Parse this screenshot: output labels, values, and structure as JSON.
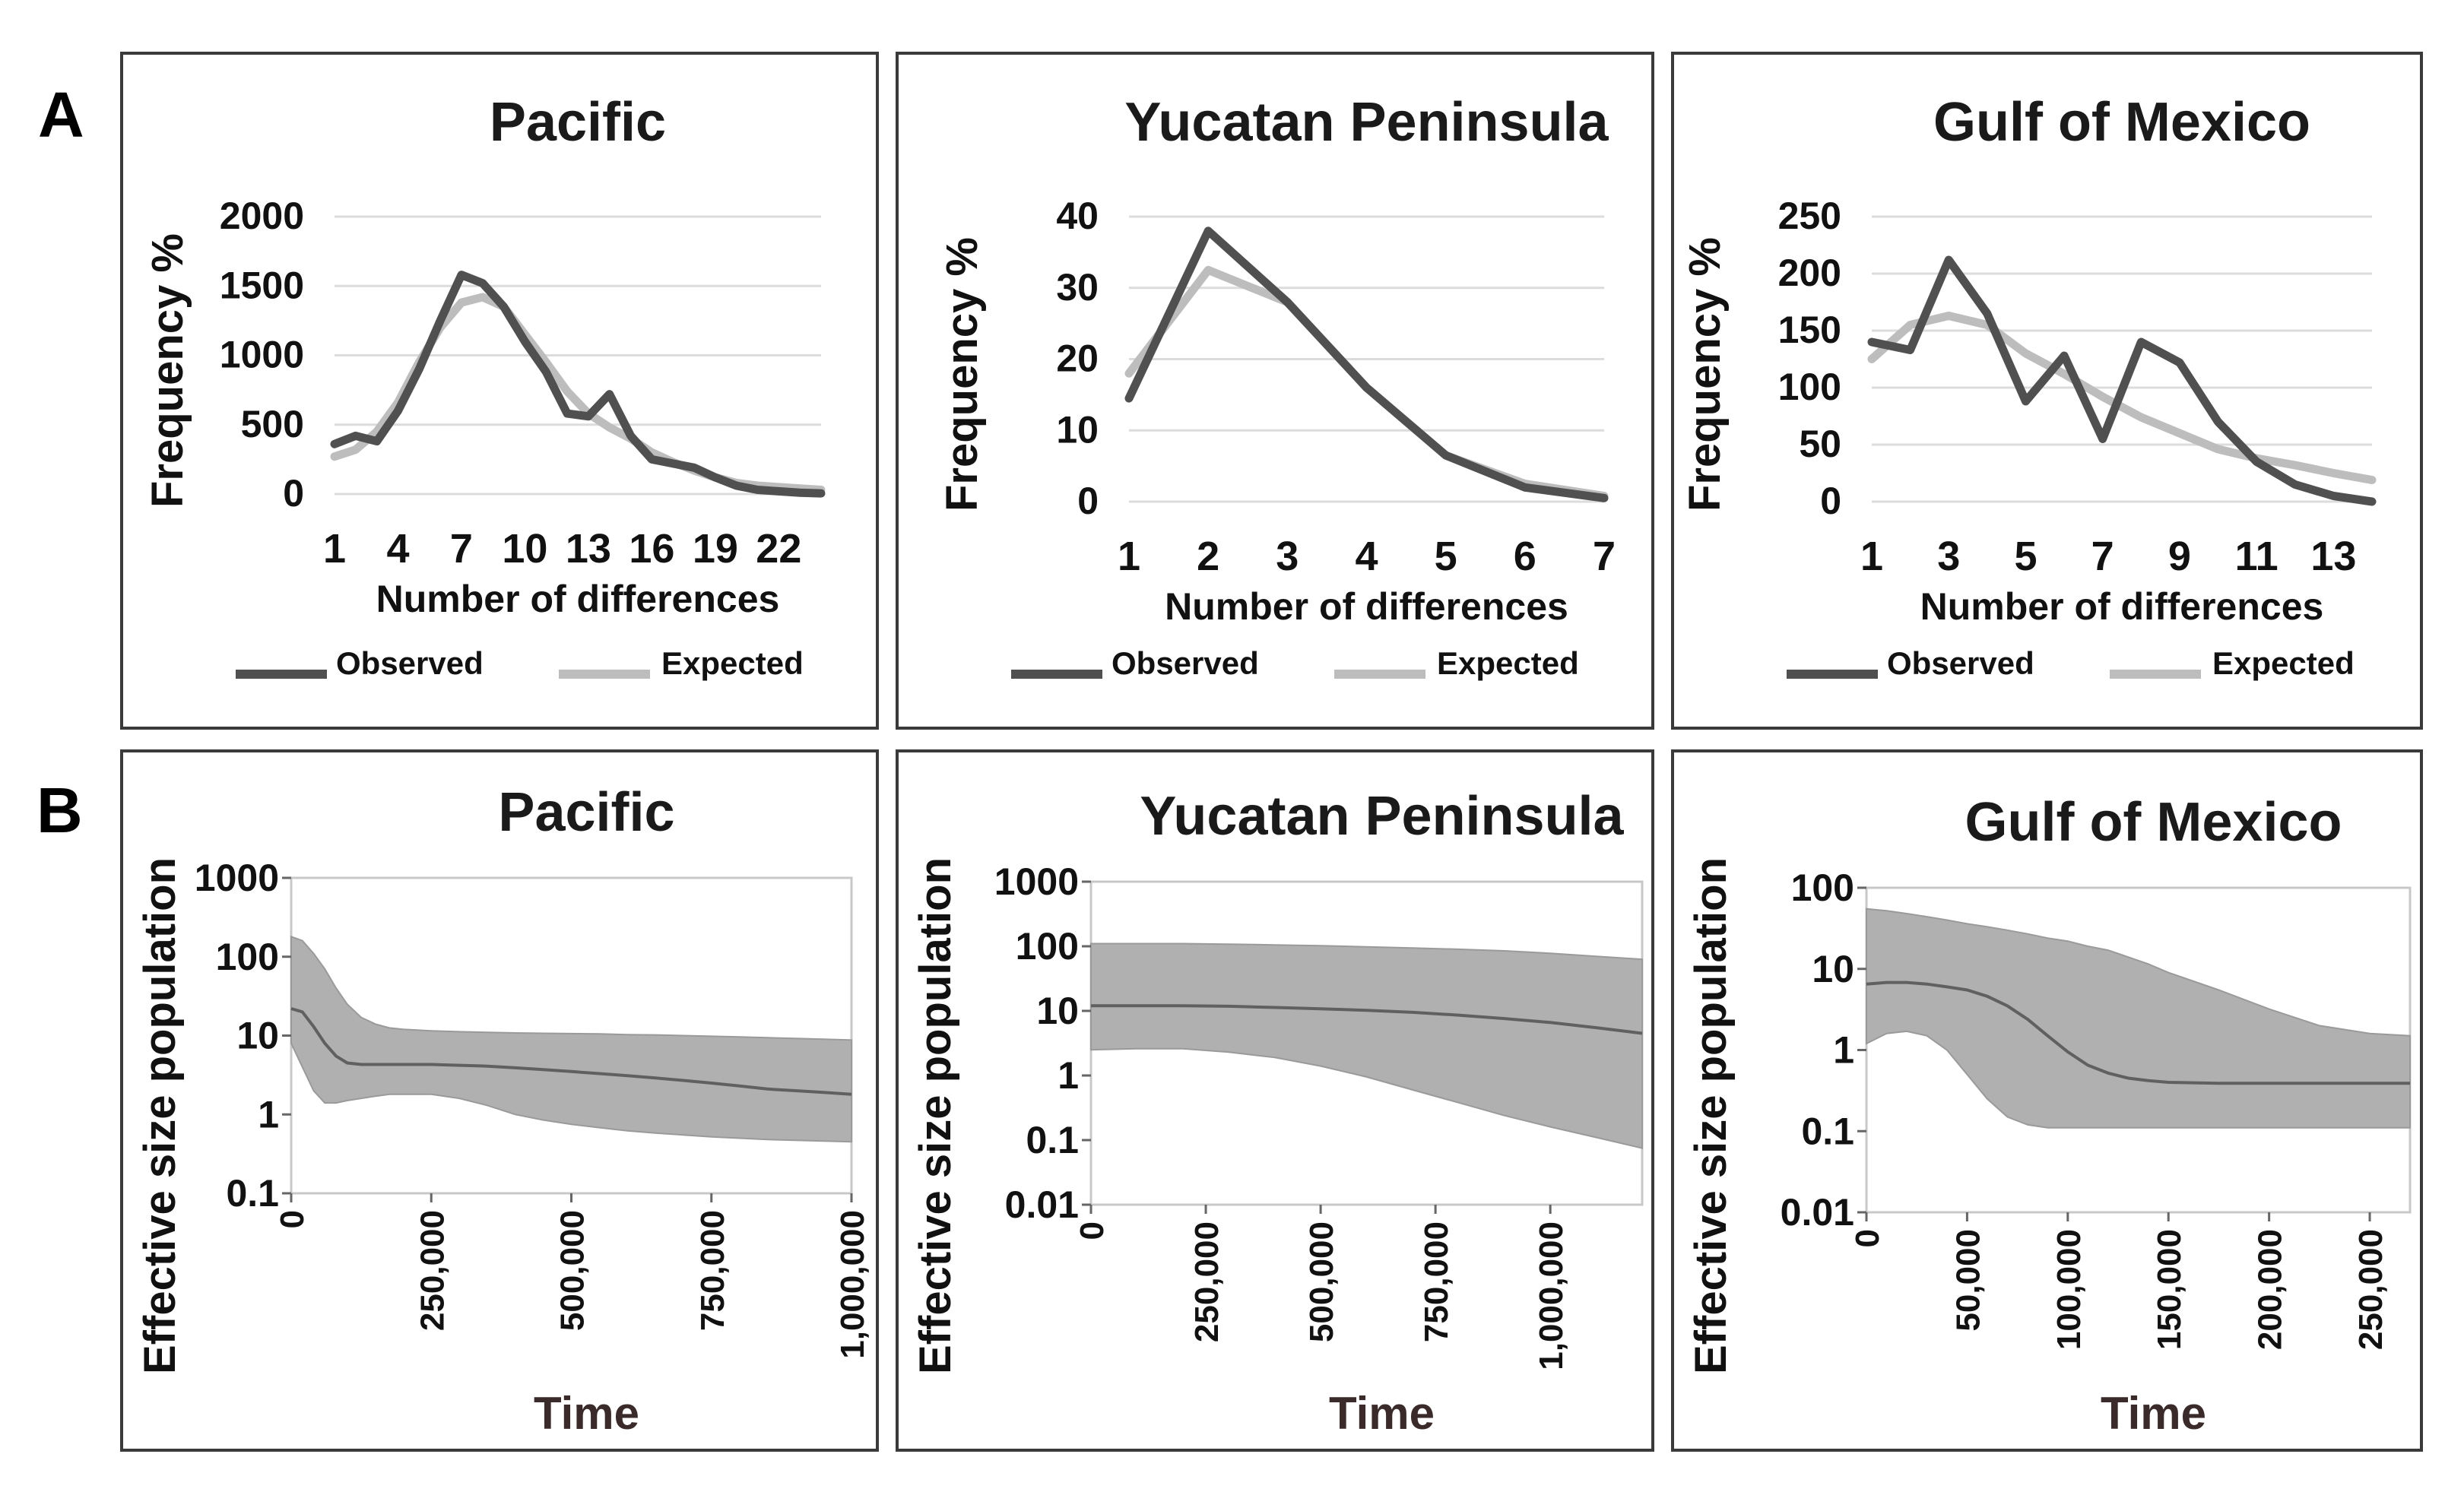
{
  "panel_labels": {
    "a": "A",
    "b": "B"
  },
  "colors": {
    "observed": "#505050",
    "expected": "#bdbdbd",
    "band": "#b0b0b0",
    "median": "#606060",
    "grid": "#dcdcdc",
    "frame": "#3a3a3a",
    "time_label": "#3a2a2a"
  },
  "chart_data": [
    {
      "type": "line",
      "title": "Pacific",
      "xlabel": "Number of differences",
      "ylabel": "Frequency %",
      "categories": [
        1,
        2,
        3,
        4,
        5,
        6,
        7,
        8,
        9,
        10,
        11,
        12,
        13,
        14,
        15,
        16,
        17,
        18,
        19,
        20,
        21,
        22,
        23,
        24
      ],
      "tick_labels": [
        "1",
        "4",
        "7",
        "10",
        "13",
        "16",
        "19",
        "22"
      ],
      "yticks": [
        0,
        500,
        1000,
        1500,
        2000
      ],
      "ytick_labels": [
        "0",
        "500",
        "1000",
        "1500",
        "2000"
      ],
      "ylim": [
        0,
        2000
      ],
      "series": [
        {
          "name": "Observed",
          "values": [
            360,
            420,
            380,
            600,
            900,
            1250,
            1580,
            1520,
            1350,
            1100,
            880,
            580,
            560,
            720,
            420,
            250,
            220,
            190,
            120,
            60,
            30,
            20,
            10,
            5
          ]
        },
        {
          "name": "Expected",
          "values": [
            270,
            320,
            450,
            660,
            950,
            1200,
            1380,
            1420,
            1350,
            1150,
            950,
            740,
            580,
            480,
            400,
            300,
            230,
            170,
            120,
            80,
            60,
            50,
            40,
            30
          ]
        }
      ],
      "legend": "bottom"
    },
    {
      "type": "line",
      "title": "Yucatan Peninsula",
      "xlabel": "Number of differences",
      "ylabel": "Frequency %",
      "categories": [
        1,
        2,
        3,
        4,
        5,
        6,
        7
      ],
      "tick_labels": [
        "1",
        "2",
        "3",
        "4",
        "5",
        "6",
        "7"
      ],
      "yticks": [
        0,
        10,
        20,
        30,
        40
      ],
      "ytick_labels": [
        "0",
        "10",
        "20",
        "30",
        "40"
      ],
      "ylim": [
        0,
        40
      ],
      "series": [
        {
          "name": "Observed",
          "values": [
            14.5,
            38,
            28,
            16,
            6.5,
            2,
            0.5
          ]
        },
        {
          "name": "Expected",
          "values": [
            18,
            32.5,
            28,
            16,
            6.5,
            2.5,
            0.8
          ]
        }
      ],
      "legend": "bottom"
    },
    {
      "type": "line",
      "title": "Gulf of Mexico",
      "xlabel": "Number of differences",
      "ylabel": "Frequency %",
      "categories": [
        1,
        2,
        3,
        4,
        5,
        6,
        7,
        8,
        9,
        10,
        11,
        12,
        13,
        14
      ],
      "tick_labels": [
        "1",
        "3",
        "5",
        "7",
        "9",
        "11",
        "13"
      ],
      "yticks": [
        0,
        50,
        100,
        150,
        200,
        250
      ],
      "ytick_labels": [
        "0",
        "50",
        "100",
        "150",
        "200",
        "250"
      ],
      "ylim": [
        0,
        250
      ],
      "series": [
        {
          "name": "Observed",
          "values": [
            140,
            133,
            212,
            165,
            88,
            128,
            55,
            140,
            122,
            70,
            35,
            15,
            5,
            0
          ]
        },
        {
          "name": "Expected",
          "values": [
            125,
            155,
            163,
            155,
            130,
            112,
            92,
            74,
            60,
            46,
            38,
            32,
            25,
            19
          ]
        }
      ],
      "legend": "bottom"
    },
    {
      "type": "area",
      "title": "Pacific",
      "xlabel": "Time",
      "ylabel": "Effective size population",
      "yscale": "log",
      "xlim": [
        0,
        1000000
      ],
      "ylim": [
        0.1,
        1000
      ],
      "xticks": [
        0,
        250000,
        500000,
        750000,
        1000000
      ],
      "xtick_labels": [
        "0",
        "250,000",
        "500,000",
        "750,000",
        "1,000,000"
      ],
      "yticks": [
        0.1,
        1,
        10,
        100,
        1000
      ],
      "ytick_labels": [
        "0.1",
        "1",
        "10",
        "100",
        "1000"
      ],
      "x": [
        0,
        20000,
        40000,
        60000,
        80000,
        100000,
        125000,
        150000,
        175000,
        200000,
        250000,
        300000,
        350000,
        400000,
        450000,
        500000,
        550000,
        600000,
        650000,
        700000,
        750000,
        800000,
        850000,
        900000,
        950000,
        1000000
      ],
      "median": [
        22,
        20,
        13,
        8,
        5.5,
        4.5,
        4.3,
        4.3,
        4.3,
        4.3,
        4.3,
        4.2,
        4.1,
        3.9,
        3.7,
        3.5,
        3.3,
        3.1,
        2.9,
        2.7,
        2.5,
        2.3,
        2.1,
        2.0,
        1.9,
        1.8
      ],
      "upper": [
        180,
        160,
        110,
        70,
        40,
        25,
        17,
        14,
        12.5,
        12,
        11.5,
        11.2,
        11,
        10.8,
        10.7,
        10.6,
        10.5,
        10.3,
        10.2,
        10,
        9.8,
        9.6,
        9.4,
        9.2,
        9,
        8.8
      ],
      "lower": [
        8,
        4,
        2,
        1.4,
        1.4,
        1.5,
        1.6,
        1.7,
        1.8,
        1.8,
        1.8,
        1.6,
        1.3,
        1.0,
        0.85,
        0.75,
        0.68,
        0.62,
        0.58,
        0.55,
        0.52,
        0.5,
        0.48,
        0.47,
        0.46,
        0.45
      ]
    },
    {
      "type": "area",
      "title": "Yucatan Peninsula",
      "xlabel": "Time",
      "ylabel": "Effective size population",
      "yscale": "log",
      "xlim": [
        0,
        1200000
      ],
      "ylim": [
        0.01,
        1000
      ],
      "xticks": [
        0,
        250000,
        500000,
        750000,
        1000000
      ],
      "xtick_labels": [
        "0",
        "250,000",
        "500,000",
        "750,000",
        "1,000,000"
      ],
      "yticks": [
        0.01,
        0.1,
        1,
        10,
        100,
        1000
      ],
      "ytick_labels": [
        "0.01",
        "0.1",
        "1",
        "10",
        "100",
        "1000"
      ],
      "x": [
        0,
        100000,
        200000,
        300000,
        400000,
        500000,
        600000,
        700000,
        800000,
        900000,
        1000000,
        1100000,
        1200000
      ],
      "median": [
        12,
        12,
        12,
        11.8,
        11.3,
        10.8,
        10.2,
        9.5,
        8.6,
        7.6,
        6.6,
        5.5,
        4.5
      ],
      "upper": [
        110,
        110,
        110,
        108,
        105,
        102,
        98,
        94,
        90,
        85,
        78,
        70,
        63
      ],
      "lower": [
        2.5,
        2.6,
        2.6,
        2.3,
        1.9,
        1.4,
        0.95,
        0.6,
        0.38,
        0.24,
        0.16,
        0.11,
        0.075
      ]
    },
    {
      "type": "area",
      "title": "Gulf of Mexico",
      "xlabel": "Time",
      "ylabel": "Effective size population",
      "yscale": "log",
      "xlim": [
        0,
        270000
      ],
      "ylim": [
        0.01,
        100
      ],
      "xticks": [
        0,
        50000,
        100000,
        150000,
        200000,
        250000
      ],
      "xtick_labels": [
        "0",
        "50,000",
        "100,000",
        "150,000",
        "200,000",
        "250,000"
      ],
      "yticks": [
        0.01,
        0.1,
        1,
        10,
        100
      ],
      "ytick_labels": [
        "0.01",
        "0.1",
        "1",
        "10",
        "100"
      ],
      "x": [
        0,
        10000,
        20000,
        30000,
        40000,
        50000,
        60000,
        70000,
        80000,
        90000,
        100000,
        110000,
        120000,
        130000,
        140000,
        150000,
        175000,
        200000,
        225000,
        250000,
        270000
      ],
      "median": [
        6.5,
        6.8,
        6.8,
        6.5,
        6,
        5.5,
        4.6,
        3.5,
        2.4,
        1.5,
        0.95,
        0.65,
        0.52,
        0.45,
        0.42,
        0.4,
        0.39,
        0.39,
        0.39,
        0.39,
        0.39
      ],
      "upper": [
        55,
        52,
        48,
        44,
        40,
        36,
        33,
        30,
        27,
        24,
        22,
        19,
        17,
        14,
        11.5,
        9,
        5.5,
        3.2,
        2,
        1.6,
        1.5
      ],
      "lower": [
        1.2,
        1.6,
        1.7,
        1.5,
        1.0,
        0.5,
        0.25,
        0.15,
        0.12,
        0.11,
        0.11,
        0.11,
        0.11,
        0.11,
        0.11,
        0.11,
        0.11,
        0.11,
        0.11,
        0.11,
        0.11
      ]
    }
  ]
}
